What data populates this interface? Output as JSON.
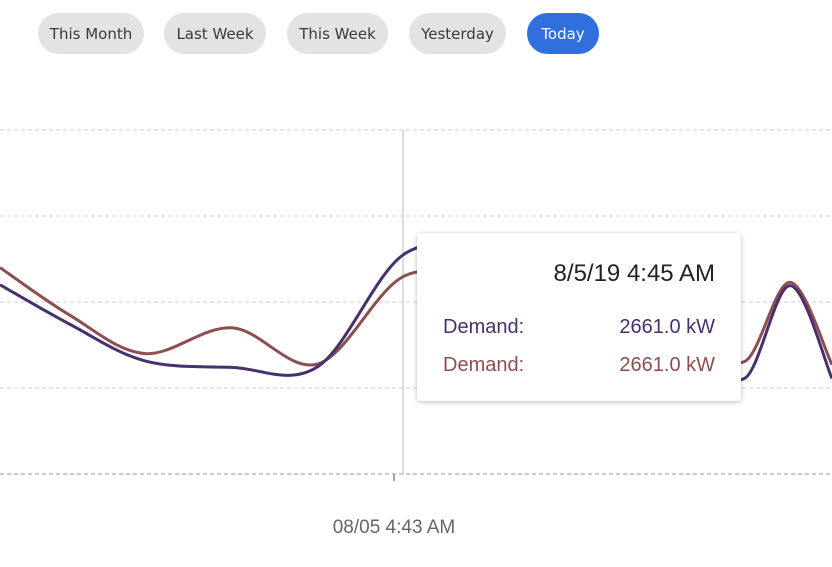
{
  "range_buttons": [
    {
      "label": "This Month",
      "active": false
    },
    {
      "label": "Last Week",
      "active": false
    },
    {
      "label": "This Week",
      "active": false
    },
    {
      "label": "Yesterday",
      "active": false
    },
    {
      "label": "Today",
      "active": true
    }
  ],
  "colors": {
    "accent": "#2f6fde",
    "series_1": "#48306e",
    "series_2": "#8d4e50",
    "grid": "#cccccc"
  },
  "tooltip": {
    "title": "8/5/19 4:45 AM",
    "rows": [
      {
        "label": "Demand:",
        "value": "2661.0 kW"
      },
      {
        "label": "Demand:",
        "value": "2661.0 kW"
      }
    ]
  },
  "chart_data": {
    "type": "line",
    "xlabel": "08/05 4:43 AM",
    "grid": true,
    "series": [
      {
        "values": [
          2200,
          1740,
          1315,
          1240,
          1250,
          2555,
          2590,
          2450,
          2330,
          1550,
          1115,
          2190,
          1110
        ]
      },
      {
        "values": [
          2400,
          1845,
          1400,
          1700,
          1280,
          2300,
          2260,
          2480,
          2700,
          1700,
          1310,
          2230,
          1270
        ]
      }
    ]
  }
}
